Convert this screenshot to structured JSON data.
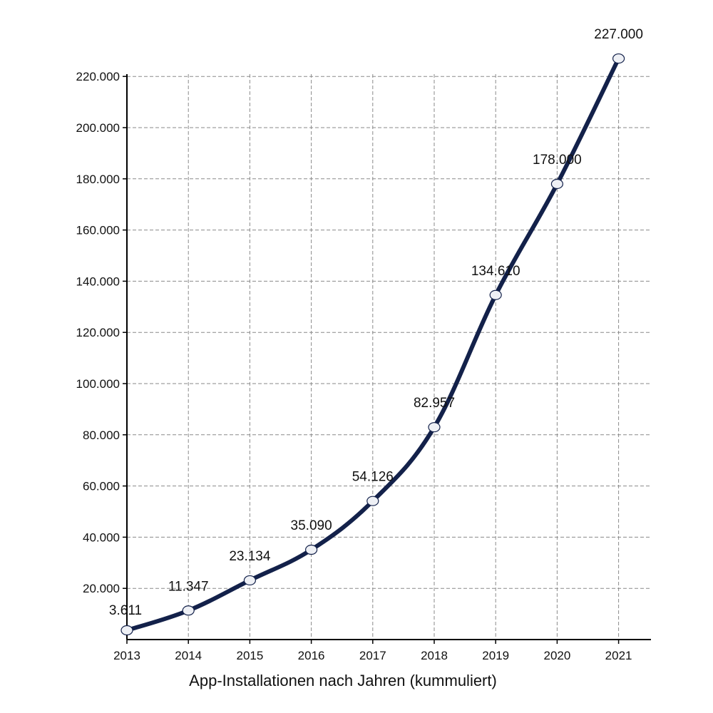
{
  "chart_data": {
    "type": "line",
    "xlabel": "App-Installationen nach Jahren (kummuliert)",
    "ylabel": "",
    "title": "",
    "categories": [
      "2013",
      "2014",
      "2015",
      "2016",
      "2017",
      "2018",
      "2019",
      "2020",
      "2021"
    ],
    "series": [
      {
        "values": [
          3611,
          11347,
          23134,
          35090,
          54126,
          82957,
          134610,
          178000,
          227000
        ],
        "data_labels": [
          "3.611",
          "11.347",
          "23.134",
          "35.090",
          "54.126",
          "82.957",
          "134.610",
          "178.000",
          "227.000"
        ],
        "color": "#13214a",
        "marker_fill": "#eef0f5",
        "marker_stroke": "#13214a"
      }
    ],
    "ylim": [
      0,
      220000
    ],
    "yticks": [
      20000,
      40000,
      60000,
      80000,
      100000,
      120000,
      140000,
      160000,
      180000,
      200000,
      220000
    ],
    "ytick_labels": [
      "20.000",
      "40.000",
      "60.000",
      "80.000",
      "100.000",
      "120.000",
      "140.000",
      "160.000",
      "180.000",
      "200.000",
      "220.000"
    ],
    "grid": true,
    "smooth": true
  }
}
